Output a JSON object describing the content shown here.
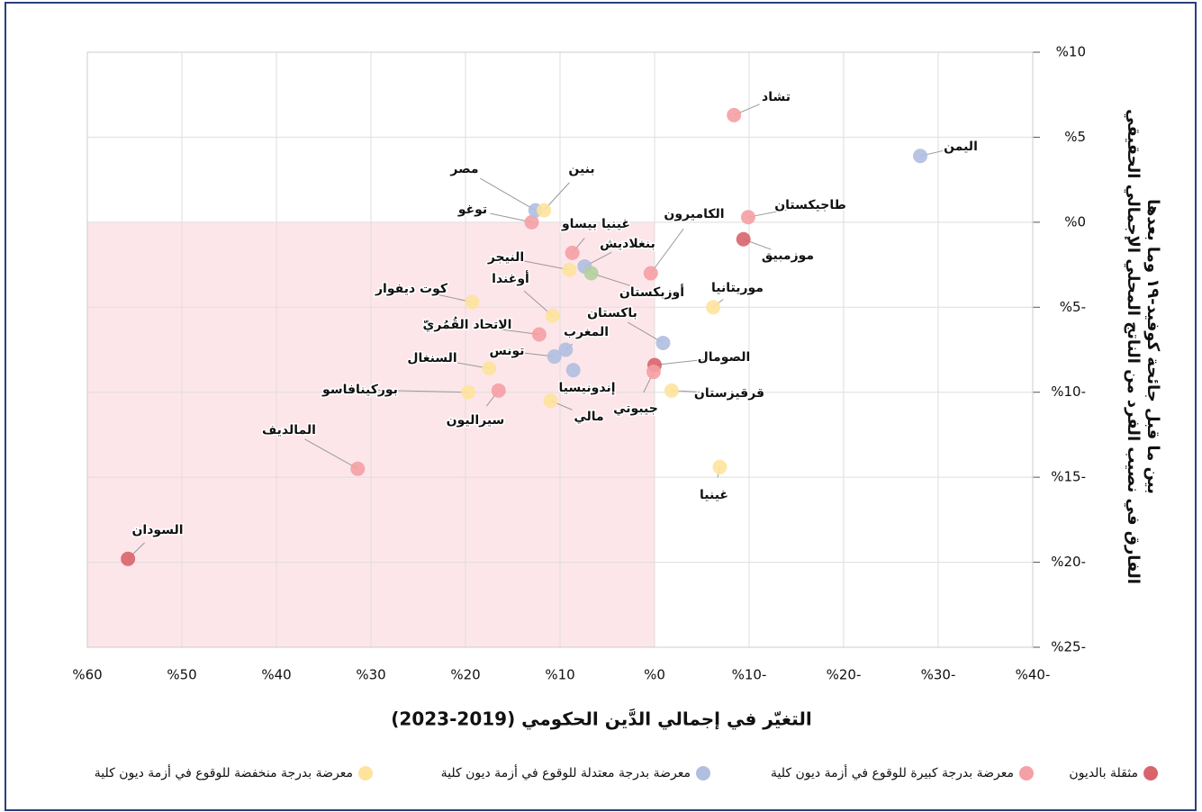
{
  "chart_data": {
    "type": "scatter",
    "x_label": "التغيّر في إجمالي الدَّين الحكومي (2019-2023)",
    "y_label": [
      "الفارق في نصيب الفرد من الناتج المحلي الإجمالي الحقيقي",
      "بين ما قبل جائحة كوفيد-١٩ وما بعدها"
    ],
    "xlim": [
      60,
      -40
    ],
    "ylim": [
      -25,
      10
    ],
    "xticks": [
      {
        "value": 60,
        "label": "%60"
      },
      {
        "value": 50,
        "label": "%50"
      },
      {
        "value": 40,
        "label": "%40"
      },
      {
        "value": 30,
        "label": "%30"
      },
      {
        "value": 20,
        "label": "%20"
      },
      {
        "value": 10,
        "label": "%10"
      },
      {
        "value": 0,
        "label": "%0"
      },
      {
        "value": -10,
        "label": "%10-"
      },
      {
        "value": -20,
        "label": "%20-"
      },
      {
        "value": -30,
        "label": "%30-"
      },
      {
        "value": -40,
        "label": "%40-"
      }
    ],
    "yticks": [
      {
        "value": 10,
        "label": "%10"
      },
      {
        "value": 5,
        "label": "%5"
      },
      {
        "value": 0,
        "label": "%0"
      },
      {
        "value": -5,
        "label": "%5-"
      },
      {
        "value": -10,
        "label": "%10-"
      },
      {
        "value": -15,
        "label": "%15-"
      },
      {
        "value": -20,
        "label": "%20-"
      },
      {
        "value": -25,
        "label": "%25-"
      }
    ],
    "grid": true,
    "legend": "bottom",
    "series": [
      {
        "name": "مثقلة بالديون",
        "color": "#d9646c",
        "labels": [
          "السودان",
          "موزمبيق",
          "الصومال"
        ],
        "x": [
          55.7,
          -9.4,
          0.0
        ],
        "values": [
          -19.8,
          -1.0,
          -8.4
        ]
      },
      {
        "name": "معرضة بدرجة كبيرة للوقوع في أزمة ديون كلية",
        "color": "#f4a0a4",
        "labels": [
          "تشاد",
          "طاجيكستان",
          "توغو",
          "غينيا بيساو",
          "الكاميرون",
          "الاتحاد القُمُريّ",
          "سيراليون",
          "المالديف",
          "جيبوتي"
        ],
        "x": [
          -8.4,
          -9.9,
          13.0,
          8.7,
          0.4,
          12.2,
          16.5,
          31.4,
          0.1
        ],
        "values": [
          6.3,
          0.3,
          0.0,
          -1.8,
          -3.0,
          -6.6,
          -9.9,
          -14.5,
          -8.8
        ]
      },
      {
        "name": "معرضة بدرجة معتدلة للوقوع في أزمة ديون كلية",
        "color": "#b0bee0",
        "labels": [
          "اليمن",
          "مصر",
          "بنغلاديش",
          "باكستان",
          "المغرب",
          "تونس",
          "إندونيسيا"
        ],
        "x": [
          -28.1,
          12.6,
          7.4,
          -0.9,
          9.4,
          10.6,
          8.6
        ],
        "values": [
          3.9,
          0.7,
          -2.6,
          -7.1,
          -7.5,
          -7.9,
          -8.7
        ]
      },
      {
        "name": "معرضة بدرجة منخفضة للوقوع في أزمة ديون كلية",
        "color": "#fde39c",
        "labels": [
          "بنين",
          "النيجر",
          "أوغندا",
          "كوت ديفوار",
          "موريتانيا",
          "السنغال",
          "بوركينافاسو",
          "مالي",
          "قرقيزستان",
          "غينيا"
        ],
        "x": [
          11.7,
          9.0,
          10.8,
          19.3,
          -6.2,
          17.5,
          19.7,
          11.0,
          -1.8,
          -6.9
        ],
        "values": [
          0.7,
          -2.8,
          -5.5,
          -4.7,
          -5.0,
          -8.6,
          -10.0,
          -10.5,
          -9.9,
          -14.4
        ]
      },
      {
        "color": "#b3cf9e",
        "labels": [
          "أوزبكستان"
        ],
        "x": [
          6.7
        ],
        "values": [
          -3.0
        ]
      }
    ]
  }
}
